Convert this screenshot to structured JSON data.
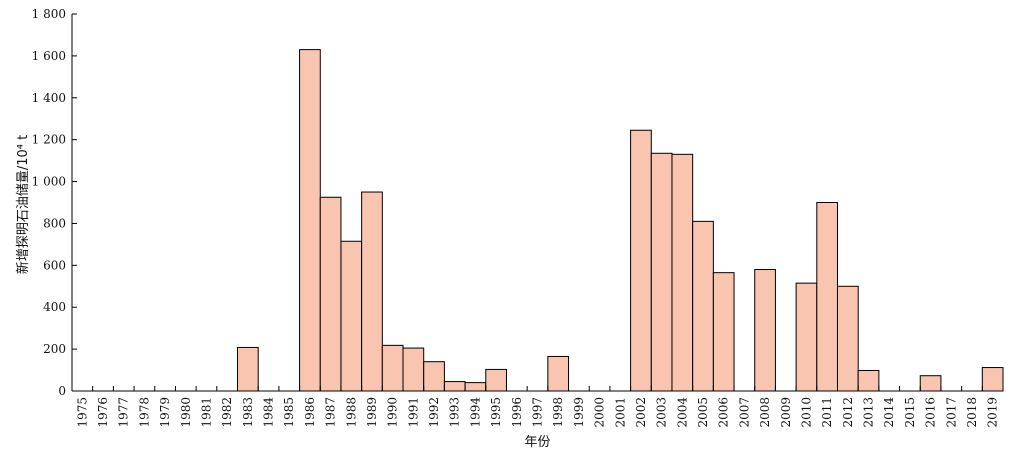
{
  "chart_data": {
    "type": "bar",
    "xlabel": "年份",
    "ylabel": "新增探明石油储量/10⁴ t",
    "ylim": [
      0,
      1800
    ],
    "yticks": [
      0,
      200,
      400,
      600,
      800,
      1000,
      1200,
      1400,
      1600,
      1800
    ],
    "ytick_labels": [
      "0",
      "200",
      "400",
      "600",
      "800",
      "1 000",
      "1 200",
      "1 400",
      "1 600",
      "1 800"
    ],
    "grid": false,
    "bar_color": "#F9C4B0",
    "bar_edge_color": "#000000",
    "categories": [
      "1975",
      "1976",
      "1977",
      "1978",
      "1979",
      "1980",
      "1981",
      "1982",
      "1983",
      "1984",
      "1985",
      "1986",
      "1987",
      "1988",
      "1989",
      "1990",
      "1991",
      "1992",
      "1993",
      "1994",
      "1995",
      "1996",
      "1997",
      "1998",
      "1999",
      "2000",
      "2001",
      "2002",
      "2003",
      "2004",
      "2005",
      "2006",
      "2007",
      "2008",
      "2009",
      "2010",
      "2011",
      "2012",
      "2013",
      "2014",
      "2015",
      "2016",
      "2017",
      "2018",
      "2019"
    ],
    "values": [
      0,
      0,
      0,
      0,
      0,
      0,
      0,
      0,
      208,
      0,
      0,
      1630,
      925,
      715,
      950,
      218,
      205,
      140,
      45,
      40,
      103,
      0,
      0,
      165,
      0,
      0,
      0,
      1245,
      1135,
      1130,
      810,
      565,
      0,
      580,
      0,
      515,
      900,
      500,
      98,
      0,
      0,
      73,
      0,
      0,
      112
    ]
  }
}
